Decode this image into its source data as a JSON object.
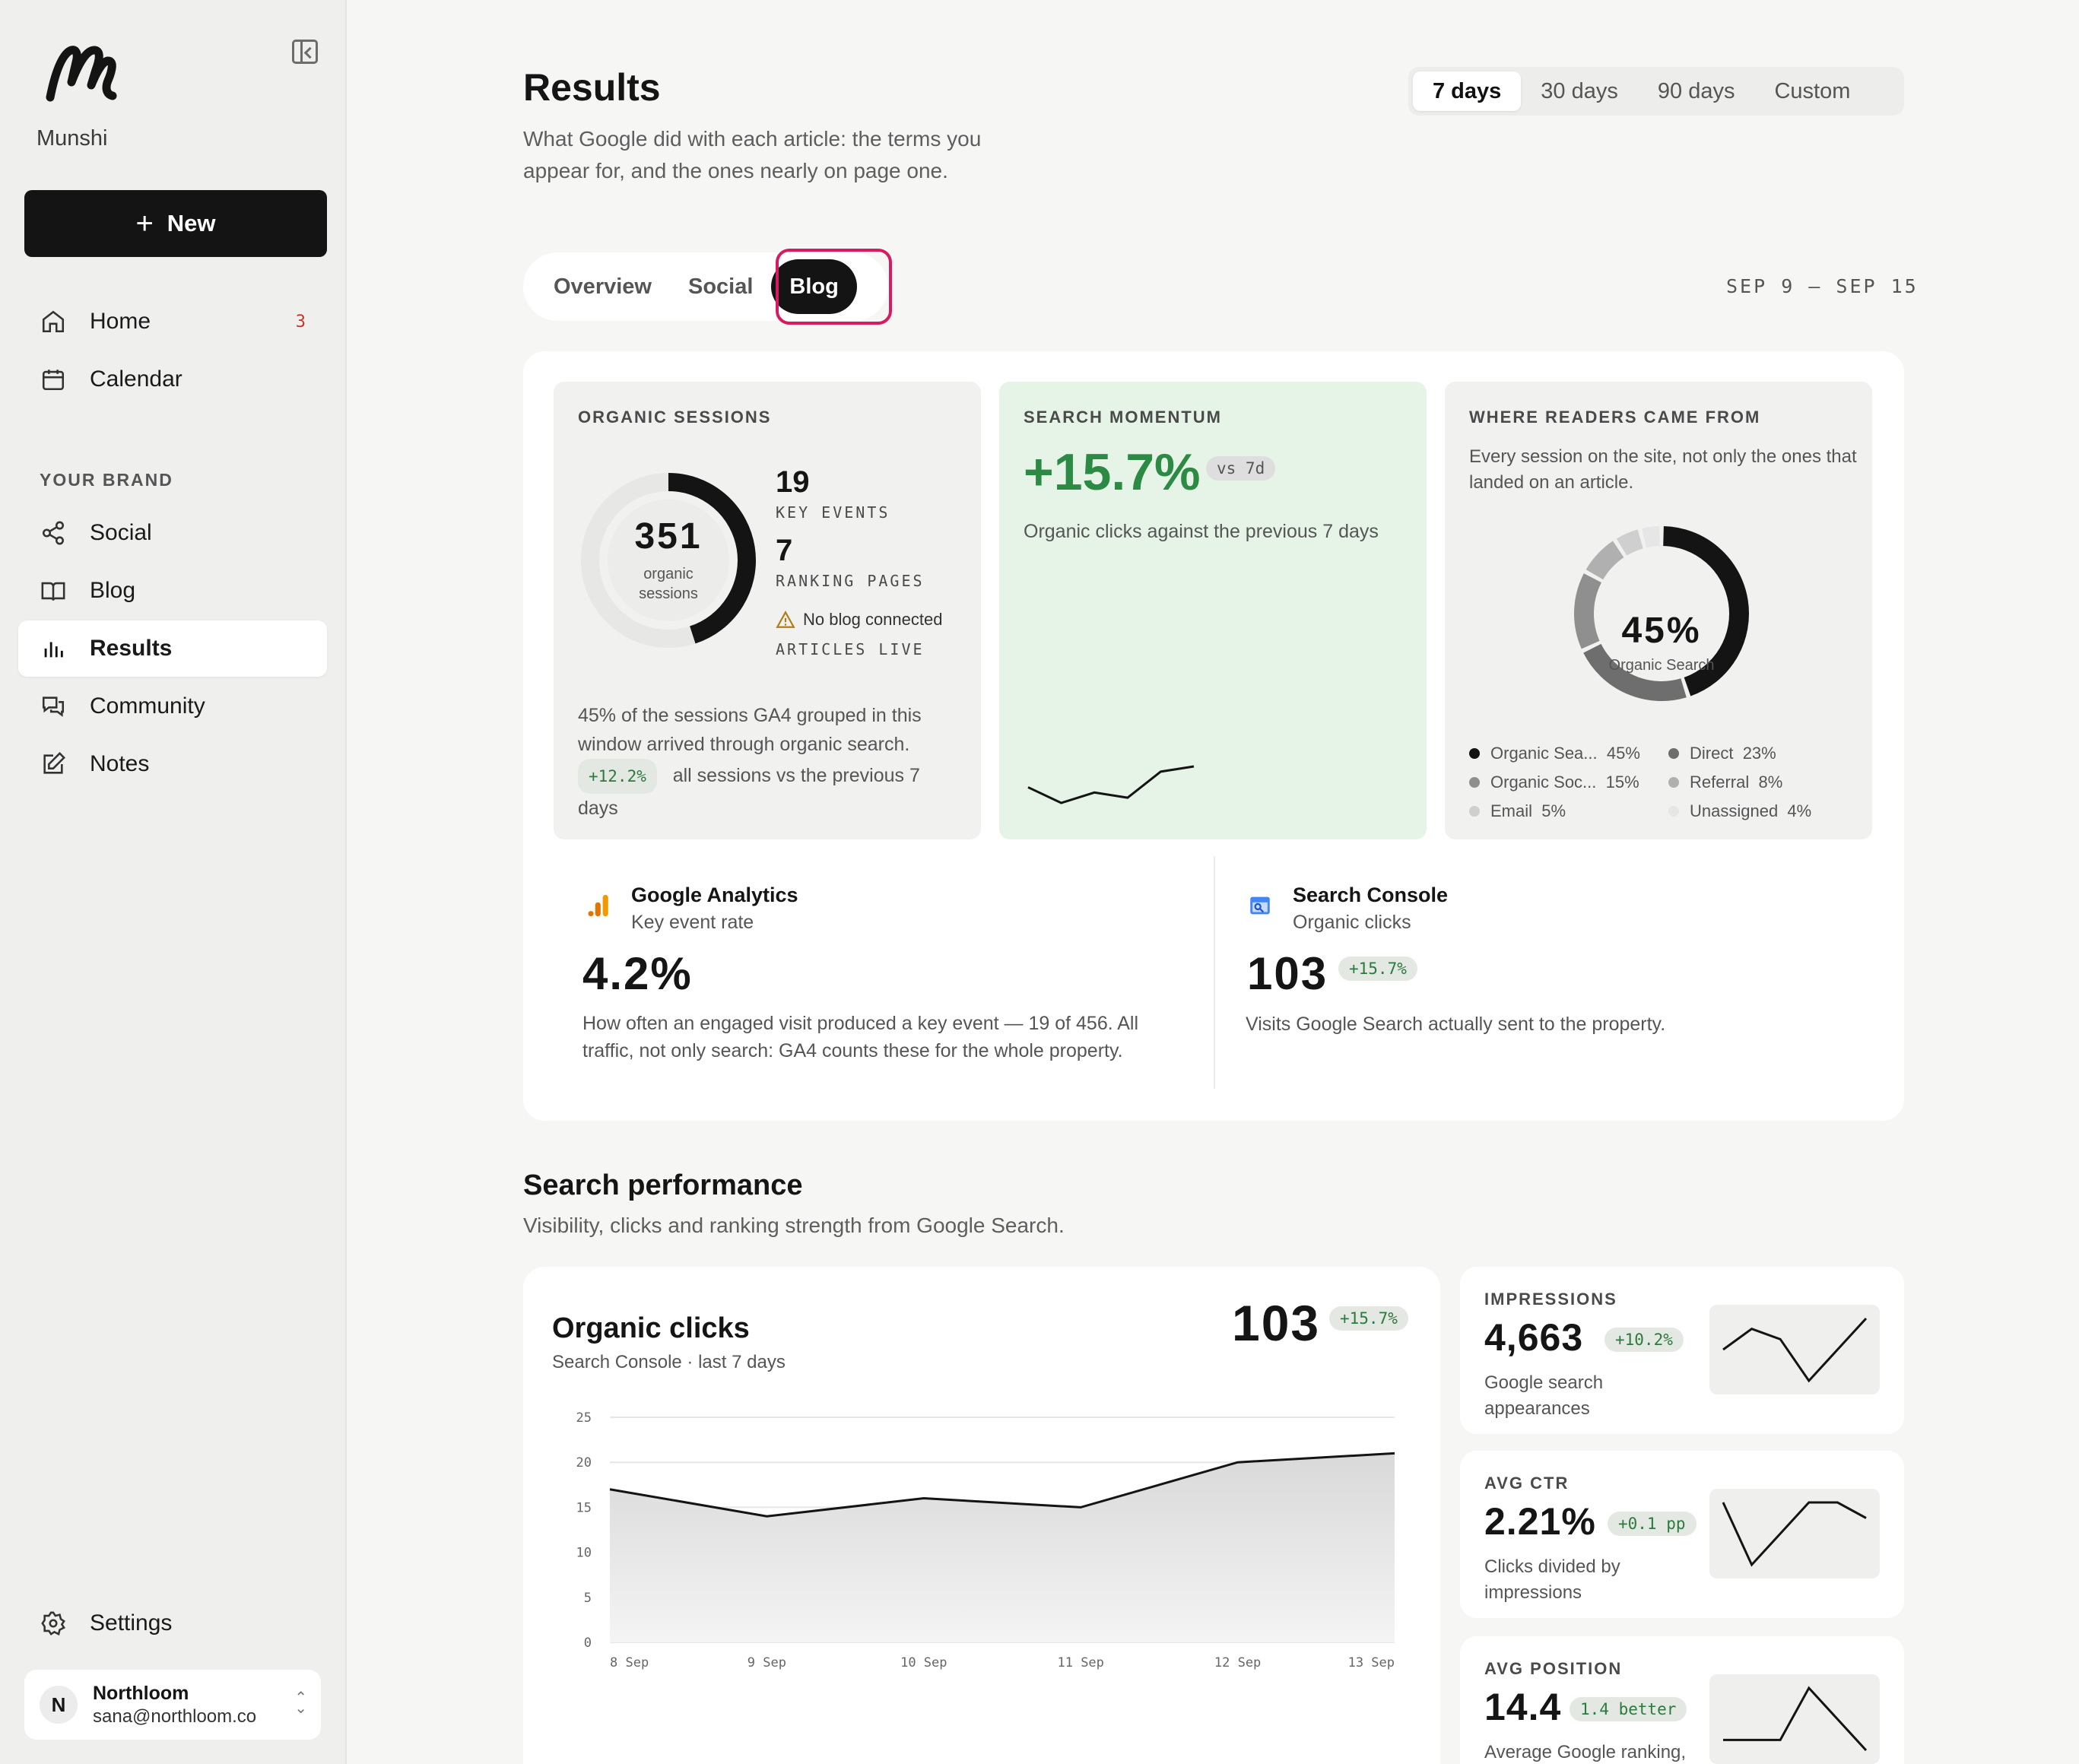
{
  "sidebar": {
    "brand_name": "Munshi",
    "new_label": "New",
    "nav": [
      {
        "label": "Home",
        "badge": "3"
      },
      {
        "label": "Calendar"
      }
    ],
    "section_label": "YOUR BRAND",
    "brand_nav": [
      {
        "label": "Social"
      },
      {
        "label": "Blog"
      },
      {
        "label": "Results"
      },
      {
        "label": "Community"
      },
      {
        "label": "Notes"
      }
    ],
    "settings_label": "Settings",
    "account": {
      "initial": "N",
      "name": "Northloom",
      "email": "sana@northloom.co"
    }
  },
  "header": {
    "title": "Results",
    "subtitle": "What Google did with each article: the terms you appear for, and the ones nearly on page one.",
    "ranges": [
      "7 days",
      "30 days",
      "90 days",
      "Custom"
    ],
    "selected_range": "7 days",
    "tabs": [
      "Overview",
      "Social",
      "Blog"
    ],
    "selected_tab": "Blog",
    "date_range": "SEP 9 – SEP 15"
  },
  "organic_sessions": {
    "title": "ORGANIC SESSIONS",
    "value": "351",
    "value_label": "organic sessions",
    "fill_fraction": 0.45,
    "key_events": "19",
    "key_events_label": "KEY EVENTS",
    "ranking_pages": "7",
    "ranking_pages_label": "RANKING PAGES",
    "warning": "No blog connected",
    "articles_label": "ARTICLES LIVE",
    "note": "45% of the sessions GA4 grouped in this window arrived through organic search.",
    "change": "+12.2%",
    "change_note": "all sessions vs the previous 7 days"
  },
  "search_momentum": {
    "title": "SEARCH MOMENTUM",
    "value": "+15.7%",
    "vs": "vs 7d",
    "note": "Organic clicks against the previous 7 days",
    "spark": [
      17,
      14,
      16,
      15,
      20,
      21
    ]
  },
  "readers": {
    "title": "WHERE READERS CAME FROM",
    "note": "Every session on the site, not only the ones that landed on an article.",
    "center_value": "45%",
    "center_label": "Organic Search",
    "legend": [
      {
        "name": "Organic Sea...",
        "pct": "45%",
        "value": 45,
        "color": "#141414"
      },
      {
        "name": "Direct",
        "pct": "23%",
        "value": 23,
        "color": "#6e6e6e"
      },
      {
        "name": "Organic Soc...",
        "pct": "15%",
        "value": 15,
        "color": "#8f8f8f"
      },
      {
        "name": "Referral",
        "pct": "8%",
        "value": 8,
        "color": "#b0b0b0"
      },
      {
        "name": "Email",
        "pct": "5%",
        "value": 5,
        "color": "#cfcfcf"
      },
      {
        "name": "Unassigned",
        "pct": "4%",
        "value": 4,
        "color": "#e6e6e6"
      }
    ]
  },
  "google_analytics": {
    "title": "Google Analytics",
    "subtitle": "Key event rate",
    "value": "4.2%",
    "description": "How often an engaged visit produced a key event — 19 of 456. All traffic, not only search: GA4 counts these for the whole property."
  },
  "search_console": {
    "title": "Search Console",
    "subtitle": "Organic clicks",
    "value": "103",
    "change": "+15.7%",
    "description": "Visits Google Search actually sent to the property."
  },
  "search_performance": {
    "title": "Search performance",
    "subtitle": "Visibility, clicks and ranking strength from Google Search."
  },
  "organic_clicks": {
    "title": "Organic clicks",
    "subtitle": "Search Console · last 7 days",
    "value": "103",
    "change": "+15.7%"
  },
  "chart_data": {
    "type": "area",
    "title": "Organic clicks",
    "x": [
      "8 Sep",
      "9 Sep",
      "10 Sep",
      "11 Sep",
      "12 Sep",
      "13 Sep"
    ],
    "series": [
      {
        "values": [
          17,
          14,
          16,
          15,
          20,
          21
        ]
      }
    ],
    "yticks": [
      0,
      5,
      10,
      15,
      20,
      25
    ],
    "ylim": [
      0,
      25
    ],
    "grid": true
  },
  "metrics": [
    {
      "label": "IMPRESSIONS",
      "value": "4,663",
      "change": "+10.2%",
      "desc": "Google search appearances",
      "spark": [
        6,
        8,
        7,
        3,
        6,
        9
      ]
    },
    {
      "label": "AVG CTR",
      "value": "2.21%",
      "change": "+0.1 pp",
      "desc": "Clicks divided by impressions",
      "spark": [
        7,
        3,
        5,
        7,
        7,
        6
      ]
    },
    {
      "label": "AVG POSITION",
      "value": "14.4",
      "change": "1.4 better",
      "desc": "Average Google ranking, where lower is",
      "spark": [
        3,
        3,
        3,
        8,
        5,
        2
      ]
    }
  ],
  "colors": {
    "accent": "#141414",
    "positive": "#2d8a45",
    "highlight": "#d81b60",
    "green_tile": "#e6f4e8"
  }
}
